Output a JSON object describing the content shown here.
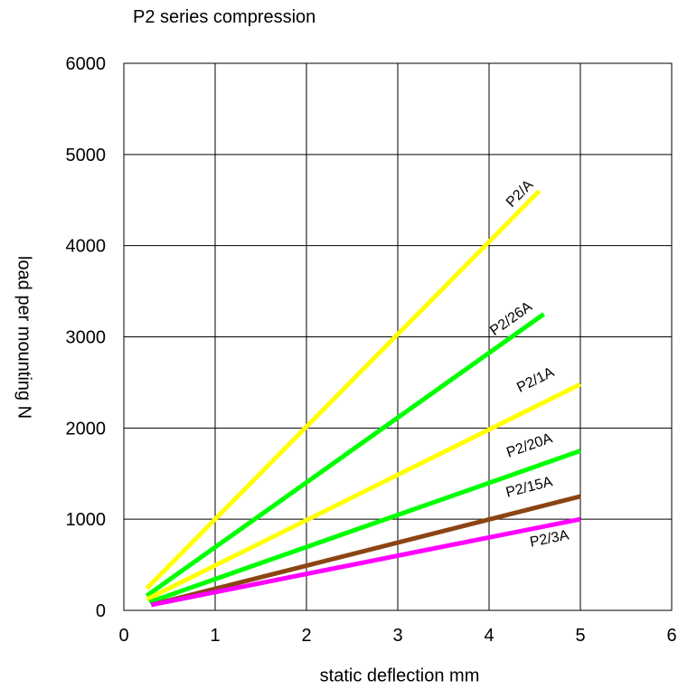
{
  "chart_data": {
    "type": "line",
    "title": "P2 series compression",
    "xlabel": "static deflection mm",
    "ylabel": "load per mounting N",
    "xlim": [
      0,
      6
    ],
    "ylim": [
      0,
      6000
    ],
    "x_ticks": [
      "0",
      "1",
      "2",
      "3",
      "4",
      "5",
      "6"
    ],
    "y_ticks": [
      "0",
      "1000",
      "2000",
      "3000",
      "4000",
      "5000",
      "6000"
    ],
    "grid": true,
    "series": [
      {
        "name": "P2/A",
        "color": "#ffff00",
        "x": [
          0.25,
          4.55
        ],
        "y": [
          240,
          4600
        ]
      },
      {
        "name": "P2/26A",
        "color": "#00ff00",
        "x": [
          0.25,
          4.6
        ],
        "y": [
          160,
          3250
        ]
      },
      {
        "name": "P2/1A",
        "color": "#ffff00",
        "x": [
          0.25,
          5.0
        ],
        "y": [
          120,
          2480
        ]
      },
      {
        "name": "P2/20A",
        "color": "#00ff00",
        "x": [
          0.28,
          5.0
        ],
        "y": [
          90,
          1750
        ]
      },
      {
        "name": "P2/15A",
        "color": "#8b4513",
        "x": [
          0.3,
          5.0
        ],
        "y": [
          60,
          1250
        ]
      },
      {
        "name": "P2/3A",
        "color": "#ff00ff",
        "x": [
          0.3,
          5.0
        ],
        "y": [
          60,
          1000
        ]
      }
    ]
  }
}
